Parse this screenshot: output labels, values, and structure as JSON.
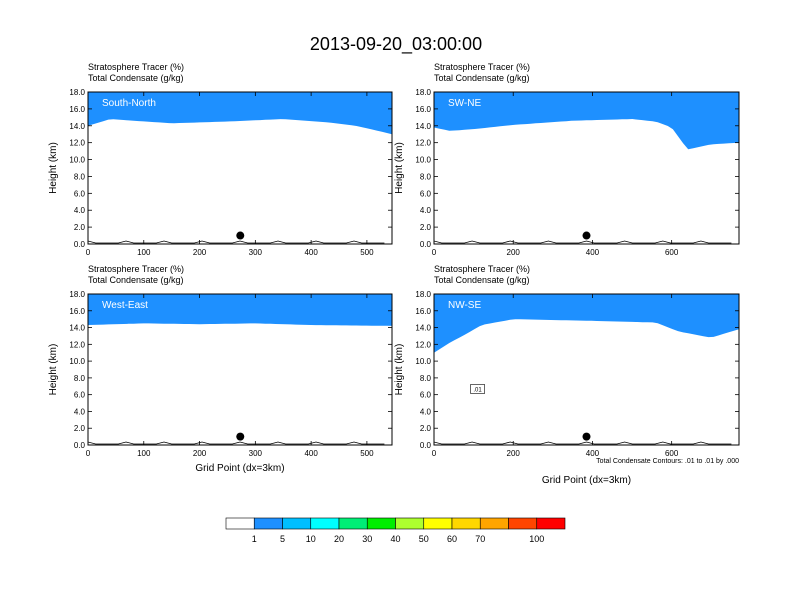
{
  "title": "2013-09-20_03:00:00",
  "colors": {
    "levels": [
      "#ffffff",
      "#1e90ff",
      "#00bfff",
      "#00ffff",
      "#00ee76",
      "#00ee00",
      "#adff2f",
      "#ffff00",
      "#ffd700",
      "#ffa500",
      "#ff4500",
      "#ff0000"
    ],
    "dot": "#000000",
    "contour": "#000000"
  },
  "labelbar": {
    "labels": [
      "1",
      "5",
      "10",
      "20",
      "30",
      "40",
      "50",
      "60",
      "70",
      "100"
    ]
  },
  "chart_data": [
    {
      "type": "heatmap",
      "panel_label": "South-North",
      "line1": "Stratosphere Tracer   (%)",
      "line2": "Total Condensate   (g/kg)",
      "ylabel": "Height (km)",
      "xlabel": "",
      "xlim": [
        0,
        545
      ],
      "ylim": [
        0,
        18
      ],
      "xticks": [
        "0",
        "100",
        "200",
        "300",
        "400",
        "500"
      ],
      "xtick_values": [
        0,
        100,
        200,
        300,
        400,
        500
      ],
      "yticks": [
        "0.0",
        "2.0",
        "4.0",
        "6.0",
        "8.0",
        "10.0",
        "12.0",
        "14.0",
        "16.0",
        "18.0"
      ],
      "marker_x": 273,
      "marker_y": 1.0,
      "tracer_base_km": [
        [
          0,
          14.0
        ],
        [
          40,
          14.8
        ],
        [
          80,
          14.6
        ],
        [
          150,
          14.3
        ],
        [
          250,
          14.5
        ],
        [
          350,
          14.8
        ],
        [
          430,
          14.4
        ],
        [
          480,
          14.0
        ],
        [
          520,
          13.4
        ],
        [
          545,
          13.0
        ]
      ],
      "contour_annotation": ""
    },
    {
      "type": "heatmap",
      "panel_label": "SW-NE",
      "line1": "Stratosphere Tracer   (%)",
      "line2": "Total Condensate   (g/kg)",
      "ylabel": "Height (km)",
      "xlabel": "",
      "xlim": [
        0,
        770
      ],
      "ylim": [
        0,
        18
      ],
      "xticks": [
        "0",
        "200",
        "400",
        "600"
      ],
      "xtick_values": [
        0,
        200,
        400,
        600
      ],
      "yticks": [
        "0.0",
        "2.0",
        "4.0",
        "6.0",
        "8.0",
        "10.0",
        "12.0",
        "14.0",
        "16.0",
        "18.0"
      ],
      "marker_x": 385,
      "marker_y": 1.0,
      "tracer_base_km": [
        [
          0,
          13.8
        ],
        [
          40,
          13.4
        ],
        [
          100,
          13.6
        ],
        [
          200,
          14.1
        ],
        [
          350,
          14.6
        ],
        [
          500,
          14.8
        ],
        [
          560,
          14.5
        ],
        [
          600,
          13.8
        ],
        [
          640,
          11.2
        ],
        [
          700,
          11.8
        ],
        [
          770,
          12.0
        ]
      ],
      "contour_annotation": ""
    },
    {
      "type": "heatmap",
      "panel_label": "West-East",
      "line1": "Stratosphere Tracer   (%)",
      "line2": "Total Condensate   (g/kg)",
      "ylabel": "Height (km)",
      "xlabel": "Grid Point (dx=3km)",
      "xlim": [
        0,
        545
      ],
      "ylim": [
        0,
        18
      ],
      "xticks": [
        "0",
        "100",
        "200",
        "300",
        "400",
        "500"
      ],
      "xtick_values": [
        0,
        100,
        200,
        300,
        400,
        500
      ],
      "yticks": [
        "0.0",
        "2.0",
        "4.0",
        "6.0",
        "8.0",
        "10.0",
        "12.0",
        "14.0",
        "16.0",
        "18.0"
      ],
      "marker_x": 273,
      "marker_y": 1.0,
      "tracer_base_km": [
        [
          0,
          14.3
        ],
        [
          100,
          14.5
        ],
        [
          200,
          14.4
        ],
        [
          300,
          14.5
        ],
        [
          400,
          14.3
        ],
        [
          545,
          14.2
        ]
      ],
      "contour_annotation": ""
    },
    {
      "type": "heatmap",
      "panel_label": "NW-SE",
      "line1": "Stratosphere Tracer   (%)",
      "line2": "Total Condensate   (g/kg)",
      "ylabel": "Height (km)",
      "xlabel": "Grid Point (dx=3km)",
      "xlim": [
        0,
        770
      ],
      "ylim": [
        0,
        18
      ],
      "xticks": [
        "0",
        "200",
        "400",
        "600"
      ],
      "xtick_values": [
        0,
        200,
        400,
        600
      ],
      "yticks": [
        "0.0",
        "2.0",
        "4.0",
        "6.0",
        "8.0",
        "10.0",
        "12.0",
        "14.0",
        "16.0",
        "18.0"
      ],
      "marker_x": 385,
      "marker_y": 1.0,
      "tracer_base_km": [
        [
          0,
          11.0
        ],
        [
          40,
          12.2
        ],
        [
          80,
          13.2
        ],
        [
          120,
          14.3
        ],
        [
          200,
          15.0
        ],
        [
          400,
          14.8
        ],
        [
          560,
          14.6
        ],
        [
          620,
          13.5
        ],
        [
          700,
          12.8
        ],
        [
          770,
          13.8
        ]
      ],
      "contour_annotation": "Total Condensate Contours: .01 to .01 by .000",
      "contour_label": ".01"
    }
  ]
}
